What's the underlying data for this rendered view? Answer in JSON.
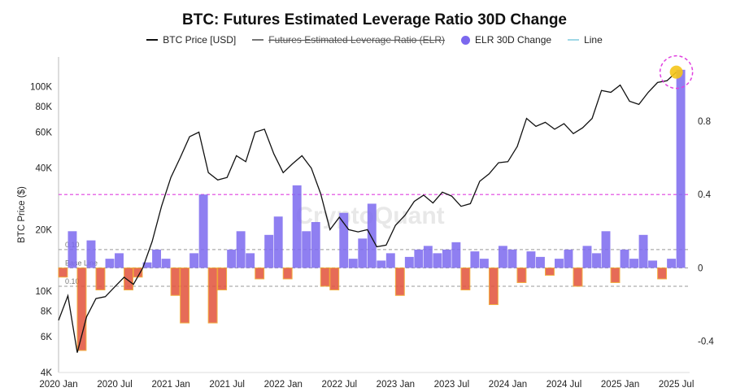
{
  "chart_data": {
    "type": "line",
    "title": "BTC: Futures Estimated Leverage Ratio 30D Change",
    "ylabel": "BTC Price ($)",
    "watermark": "CryptoQuant",
    "legend": [
      {
        "label": "BTC Price [USD]",
        "color": "#111111",
        "kind": "line",
        "strike": false
      },
      {
        "label": "Futures Estimated Leverage Ratio (ELR)",
        "color": "#777777",
        "kind": "line",
        "strike": true
      },
      {
        "label": "ELR 30D Change",
        "color": "#7b68ee",
        "kind": "dot",
        "strike": false
      },
      {
        "label": "Line",
        "color": "#9fd8e6",
        "kind": "line",
        "strike": false
      }
    ],
    "x_tick_labels": [
      "2020 Jan",
      "2020 Jul",
      "2021 Jan",
      "2021 Jul",
      "2022 Jan",
      "2022 Jul",
      "2023 Jan",
      "2023 Jul",
      "2024 Jan",
      "2024 Jul",
      "2025 Jan",
      "2025 Jul"
    ],
    "y_left_ticks": [
      {
        "label": "100K",
        "value": 100000
      },
      {
        "label": "80K",
        "value": 80000
      },
      {
        "label": "60K",
        "value": 60000
      },
      {
        "label": "40K",
        "value": 40000
      },
      {
        "label": "20K",
        "value": 20000
      },
      {
        "label": "10K",
        "value": 10000
      },
      {
        "label": "8K",
        "value": 8000
      },
      {
        "label": "6K",
        "value": 6000
      },
      {
        "label": "4K",
        "value": 4000
      }
    ],
    "y_right_ticks": [
      {
        "label": "0.8",
        "value": 0.8
      },
      {
        "label": "0.4",
        "value": 0.4
      },
      {
        "label": "0",
        "value": 0
      },
      {
        "label": "-0.4",
        "value": -0.4
      }
    ],
    "y_left_scale": "log",
    "y_left_range": [
      4000,
      140000
    ],
    "y_right_range": [
      -0.57,
      1.15
    ],
    "reference_lines": [
      {
        "label": "",
        "value": 0.4,
        "color": "#e040e0",
        "style": "dashed"
      },
      {
        "label": "0.10",
        "value": 0.1,
        "color": "#999999",
        "style": "dashed"
      },
      {
        "label": "Base Line",
        "value": 0,
        "color": "#999999",
        "style": "dashed"
      },
      {
        "label": "0.10",
        "value": -0.1,
        "color": "#999999",
        "style": "dashed"
      }
    ],
    "btc_price": {
      "name": "BTC Price [USD]",
      "x": [
        "2020-01",
        "2020-02",
        "2020-03",
        "2020-04",
        "2020-05",
        "2020-06",
        "2020-07",
        "2020-08",
        "2020-09",
        "2020-10",
        "2020-11",
        "2020-12",
        "2021-01",
        "2021-02",
        "2021-03",
        "2021-04",
        "2021-05",
        "2021-06",
        "2021-07",
        "2021-08",
        "2021-09",
        "2021-10",
        "2021-11",
        "2021-12",
        "2022-01",
        "2022-02",
        "2022-03",
        "2022-04",
        "2022-05",
        "2022-06",
        "2022-07",
        "2022-08",
        "2022-09",
        "2022-10",
        "2022-11",
        "2022-12",
        "2023-01",
        "2023-02",
        "2023-03",
        "2023-04",
        "2023-05",
        "2023-06",
        "2023-07",
        "2023-08",
        "2023-09",
        "2023-10",
        "2023-11",
        "2023-12",
        "2024-01",
        "2024-02",
        "2024-03",
        "2024-04",
        "2024-05",
        "2024-06",
        "2024-07",
        "2024-08",
        "2024-09",
        "2024-10",
        "2024-11",
        "2024-12",
        "2025-01",
        "2025-02",
        "2025-03",
        "2025-04",
        "2025-05",
        "2025-06",
        "2025-07"
      ],
      "y": [
        7200,
        9500,
        5000,
        7500,
        9200,
        9400,
        10500,
        11700,
        10800,
        13000,
        17500,
        26000,
        36000,
        45000,
        57000,
        60000,
        38000,
        35000,
        36000,
        46000,
        43000,
        60000,
        62000,
        47000,
        38000,
        42000,
        46000,
        40000,
        30000,
        20000,
        23000,
        20000,
        19500,
        20000,
        16500,
        16800,
        21000,
        23500,
        27500,
        29500,
        27000,
        30500,
        29200,
        26000,
        26800,
        34500,
        37500,
        42500,
        43000,
        51000,
        70000,
        64000,
        67000,
        62000,
        66000,
        59000,
        63000,
        70000,
        96000,
        94000,
        102000,
        85000,
        82000,
        94000,
        105000,
        107000,
        118000
      ]
    },
    "elr_30d_change": {
      "name": "ELR 30D Change",
      "x": [
        "2020-01",
        "2020-02",
        "2020-03",
        "2020-04",
        "2020-05",
        "2020-06",
        "2020-07",
        "2020-08",
        "2020-09",
        "2020-10",
        "2020-11",
        "2020-12",
        "2021-01",
        "2021-02",
        "2021-03",
        "2021-04",
        "2021-05",
        "2021-06",
        "2021-07",
        "2021-08",
        "2021-09",
        "2021-10",
        "2021-11",
        "2021-12",
        "2022-01",
        "2022-02",
        "2022-03",
        "2022-04",
        "2022-05",
        "2022-06",
        "2022-07",
        "2022-08",
        "2022-09",
        "2022-10",
        "2022-11",
        "2022-12",
        "2023-01",
        "2023-02",
        "2023-03",
        "2023-04",
        "2023-05",
        "2023-06",
        "2023-07",
        "2023-08",
        "2023-09",
        "2023-10",
        "2023-11",
        "2023-12",
        "2024-01",
        "2024-02",
        "2024-03",
        "2024-04",
        "2024-05",
        "2024-06",
        "2024-07",
        "2024-08",
        "2024-09",
        "2024-10",
        "2024-11",
        "2024-12",
        "2025-01",
        "2025-02",
        "2025-03",
        "2025-04",
        "2025-05",
        "2025-06",
        "2025-07"
      ],
      "y": [
        -0.05,
        0.2,
        -0.45,
        0.15,
        -0.12,
        0.05,
        0.08,
        -0.12,
        -0.05,
        0.03,
        0.1,
        0.05,
        -0.15,
        -0.3,
        0.08,
        0.4,
        -0.3,
        -0.12,
        0.1,
        0.2,
        0.08,
        -0.06,
        0.18,
        0.28,
        -0.06,
        0.45,
        0.2,
        0.25,
        -0.1,
        -0.12,
        0.3,
        0.05,
        0.16,
        0.35,
        0.04,
        0.08,
        -0.15,
        0.06,
        0.1,
        0.12,
        0.08,
        0.1,
        0.14,
        -0.12,
        0.09,
        0.05,
        -0.2,
        0.12,
        0.1,
        -0.08,
        0.09,
        0.06,
        -0.04,
        0.05,
        0.1,
        -0.1,
        0.12,
        0.08,
        0.2,
        -0.08,
        0.1,
        0.05,
        0.18,
        0.04,
        -0.06,
        0.05,
        1.08
      ]
    }
  }
}
